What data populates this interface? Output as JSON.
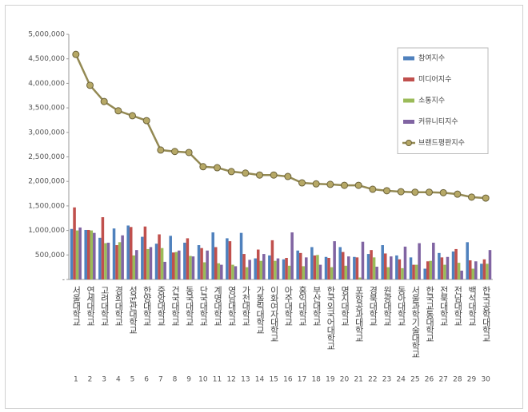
{
  "chart_data": {
    "type": "bar",
    "categories": [
      "서울대학교",
      "연세대학교",
      "고려대학교",
      "경희대학교",
      "성균관대학교",
      "한양대학교",
      "중앙대학교",
      "건국대학교",
      "동국대학교",
      "단국대학교",
      "계명대학교",
      "영남대학교",
      "가천대학교",
      "가톨릭대학교",
      "이화여자대학교",
      "아주대학교",
      "홍익대학교",
      "부산대학교",
      "한국외국어대학교",
      "명지대학교",
      "포항공과대학교",
      "경북대학교",
      "원광대학교",
      "동아대학교",
      "서울과학기술대학교",
      "한국교통대학교",
      "전북대학교",
      "전남대학교",
      "백석대학교",
      "한국공학대학교"
    ],
    "ranks": [
      1,
      2,
      3,
      4,
      5,
      6,
      7,
      8,
      9,
      10,
      11,
      12,
      13,
      14,
      15,
      16,
      17,
      18,
      19,
      20,
      21,
      22,
      23,
      24,
      25,
      26,
      27,
      28,
      29,
      30
    ],
    "series": [
      {
        "name": "참여지수",
        "type": "bar",
        "color": "#4f81bd",
        "values": [
          1030000,
          1010000,
          850000,
          1040000,
          1100000,
          870000,
          730000,
          890000,
          750000,
          700000,
          960000,
          840000,
          950000,
          430000,
          490000,
          410000,
          590000,
          660000,
          460000,
          660000,
          460000,
          520000,
          700000,
          490000,
          450000,
          220000,
          540000,
          570000,
          760000,
          320000
        ]
      },
      {
        "name": "미디어지수",
        "type": "bar",
        "color": "#c0504d",
        "values": [
          1470000,
          1010000,
          1270000,
          700000,
          1070000,
          1080000,
          920000,
          550000,
          840000,
          640000,
          660000,
          780000,
          520000,
          610000,
          800000,
          440000,
          540000,
          490000,
          440000,
          560000,
          450000,
          600000,
          530000,
          410000,
          300000,
          370000,
          450000,
          620000,
          390000,
          410000
        ]
      },
      {
        "name": "소통지수",
        "type": "bar",
        "color": "#9bbb59",
        "values": [
          1000000,
          1000000,
          740000,
          760000,
          490000,
          620000,
          640000,
          560000,
          480000,
          350000,
          330000,
          300000,
          250000,
          380000,
          380000,
          280000,
          270000,
          500000,
          250000,
          280000,
          40000,
          450000,
          250000,
          230000,
          300000,
          380000,
          300000,
          340000,
          220000,
          320000
        ]
      },
      {
        "name": "커뮤니티지수",
        "type": "bar",
        "color": "#8064a2",
        "values": [
          1060000,
          950000,
          750000,
          900000,
          600000,
          660000,
          360000,
          590000,
          470000,
          590000,
          300000,
          270000,
          400000,
          520000,
          430000,
          960000,
          450000,
          300000,
          780000,
          470000,
          770000,
          260000,
          470000,
          670000,
          740000,
          750000,
          460000,
          180000,
          370000,
          600000
        ]
      },
      {
        "name": "브랜드평판지수",
        "type": "line",
        "color": "#938953",
        "values": [
          4590000,
          3960000,
          3630000,
          3440000,
          3340000,
          3240000,
          2640000,
          2610000,
          2590000,
          2300000,
          2280000,
          2200000,
          2170000,
          2130000,
          2130000,
          2100000,
          1970000,
          1950000,
          1940000,
          1920000,
          1920000,
          1840000,
          1810000,
          1790000,
          1780000,
          1780000,
          1770000,
          1740000,
          1680000,
          1660000
        ]
      }
    ],
    "ylim": [
      0,
      5000000
    ],
    "yticks": [
      {
        "value": 0,
        "label": "-"
      },
      {
        "value": 500000,
        "label": "500,000"
      },
      {
        "value": 1000000,
        "label": "1,000,000"
      },
      {
        "value": 1500000,
        "label": "1,500,000"
      },
      {
        "value": 2000000,
        "label": "2,000,000"
      },
      {
        "value": 2500000,
        "label": "2,500,000"
      },
      {
        "value": 3000000,
        "label": "3,000,000"
      },
      {
        "value": 3500000,
        "label": "3,500,000"
      },
      {
        "value": 4000000,
        "label": "4,000,000"
      },
      {
        "value": 4500000,
        "label": "4,500,000"
      },
      {
        "value": 5000000,
        "label": "5,000,000"
      }
    ],
    "grid": false,
    "legend": "top-right"
  }
}
